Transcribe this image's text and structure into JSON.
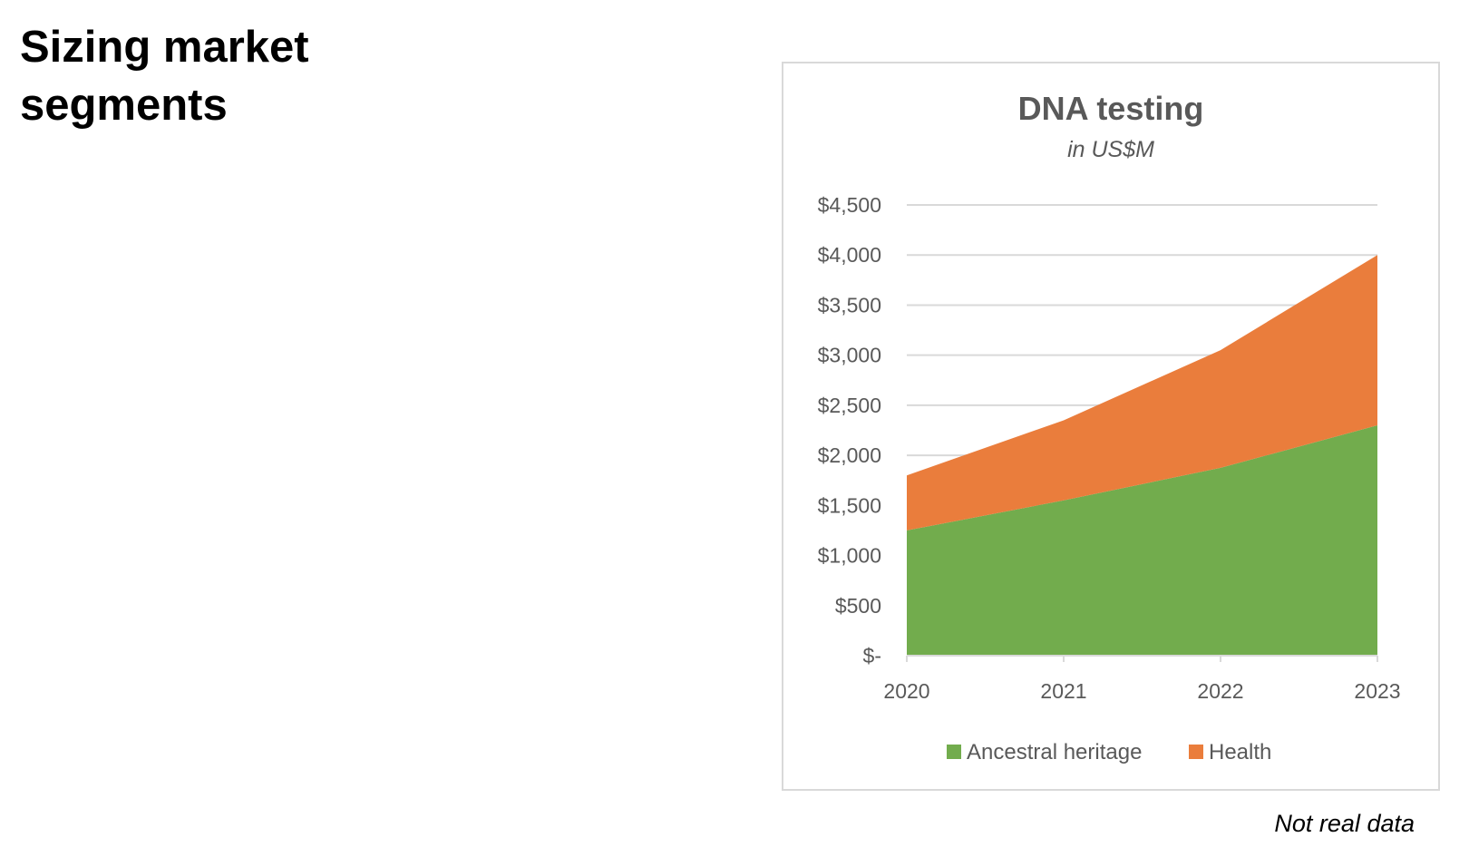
{
  "slide": {
    "title": "Sizing market segments",
    "footnote": "Not real data"
  },
  "chart_data": {
    "type": "area",
    "stacked": true,
    "title": "DNA testing",
    "subtitle": "in US$M",
    "categories": [
      "2020",
      "2021",
      "2022",
      "2023"
    ],
    "series": [
      {
        "name": "Ancestral heritage",
        "values": [
          1250,
          1550,
          1875,
          2300
        ],
        "color": "#72ac4d"
      },
      {
        "name": "Health",
        "values": [
          550,
          800,
          1175,
          1700
        ],
        "color": "#ea7d3c"
      }
    ],
    "ylim": [
      0,
      4500
    ],
    "y_ticks": [
      0,
      500,
      1000,
      1500,
      2000,
      2500,
      3000,
      3500,
      4000,
      4500
    ],
    "y_tick_labels": [
      "$-",
      "$500",
      "$1,000",
      "$1,500",
      "$2,000",
      "$2,500",
      "$3,000",
      "$3,500",
      "$4,000",
      "$4,500"
    ],
    "grid": true,
    "legend_position": "bottom"
  }
}
